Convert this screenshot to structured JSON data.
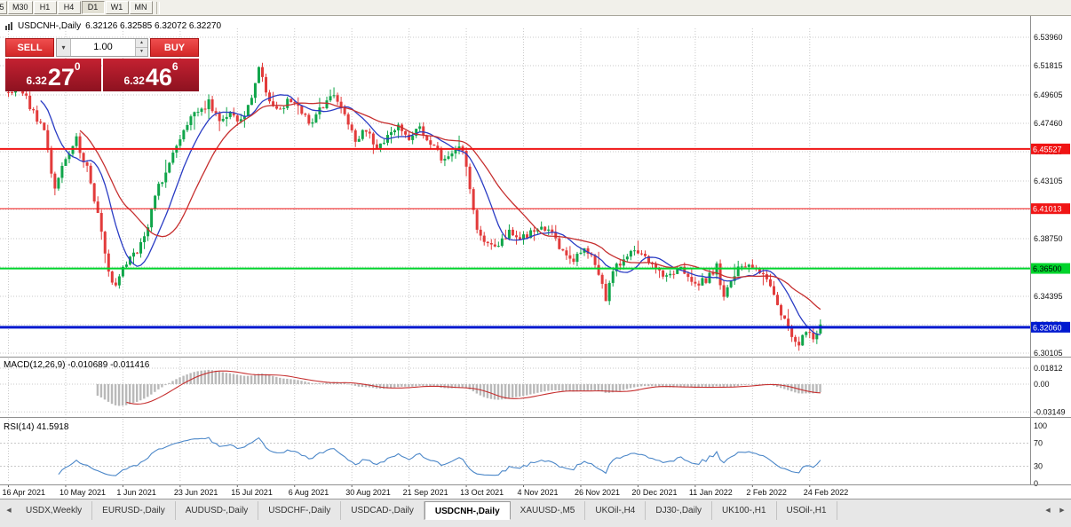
{
  "icons": {
    "scroll_left": "◀",
    "scroll_right": "▶",
    "dropdown": "▾",
    "spin_up": "▲",
    "spin_down": "▼"
  },
  "toolbar": {
    "periods": [
      {
        "label": "5",
        "active": false,
        "partial": true
      },
      {
        "label": "M30",
        "active": false
      },
      {
        "label": "H1",
        "active": false
      },
      {
        "label": "H4",
        "active": false
      },
      {
        "label": "D1",
        "active": true
      },
      {
        "label": "W1",
        "active": false
      },
      {
        "label": "MN",
        "active": false
      }
    ]
  },
  "chart": {
    "symbol_title": "USDCNH-,Daily",
    "ohlc_line": "6.32126 6.32585 6.32072 6.32270",
    "price_scale": [
      "6.53960",
      "6.51815",
      "6.49605",
      "6.47460",
      "6.45315",
      "6.43105",
      "6.40960",
      "6.38750",
      "6.36605",
      "6.34395",
      "6.32250",
      "6.30105"
    ],
    "levels": [
      {
        "label": "6.45527",
        "value": 6.45527,
        "color": "#f01414",
        "text_color": "#ffffff",
        "line_width": 2
      },
      {
        "label": "6.41013",
        "value": 6.41013,
        "color": "#f01414",
        "text_color": "#ffffff",
        "line_width": 1
      },
      {
        "label": "6.36500",
        "value": 6.365,
        "color": "#00d42c",
        "text_color": "#000000",
        "line_width": 2
      },
      {
        "label": "6.32060",
        "value": 6.3206,
        "color": "#0019cf",
        "text_color": "#ffffff",
        "line_width": 3
      }
    ],
    "dates": [
      "16 Apr 2021",
      "10 May 2021",
      "1 Jun 2021",
      "23 Jun 2021",
      "15 Jul 2021",
      "6 Aug 2021",
      "30 Aug 2021",
      "21 Sep 2021",
      "13 Oct 2021",
      "4 Nov 2021",
      "26 Nov 2021",
      "20 Dec 2021",
      "11 Jan 2022",
      "2 Feb 2022",
      "24 Feb 2022"
    ],
    "date_day_indices": [
      0,
      16,
      32,
      48,
      64,
      80,
      96,
      112,
      128,
      144,
      160,
      176,
      192,
      208,
      224
    ],
    "colors": {
      "up": "#10a54a",
      "down": "#e23b3b",
      "ma_fast": "#2a3cc4",
      "ma_slow": "#c62f2f",
      "grid": "#c9c9c9",
      "macd_hist": "#b9b9b9",
      "macd_signal": "#c62f2f",
      "rsi_line": "#4a86c8",
      "axis_text": "#111111",
      "separator": "#8f8f8f"
    }
  },
  "quote_panel": {
    "sell_label": "SELL",
    "buy_label": "BUY",
    "volume": "1.00",
    "sell_price": {
      "prefix": "6.32",
      "big": "27",
      "sup": "0"
    },
    "buy_price": {
      "prefix": "6.32",
      "big": "46",
      "sup": "6"
    }
  },
  "macd": {
    "label": "MACD(12,26,9) -0.010689 -0.011416",
    "scale_labels": [
      "0.01812",
      "0.00",
      "-0.03149"
    ],
    "fast": 12,
    "slow": 26,
    "signal": 9
  },
  "rsi": {
    "label": "RSI(14) 41.5918",
    "scale_labels": [
      "100",
      "70",
      "30",
      "0"
    ],
    "period": 14,
    "levels": [
      70,
      30
    ]
  },
  "tabs": {
    "items": [
      {
        "label": "USDX,Weekly",
        "active": false
      },
      {
        "label": "EURUSD-,Daily",
        "active": false
      },
      {
        "label": "AUDUSD-,Daily",
        "active": false
      },
      {
        "label": "USDCHF-,Daily",
        "active": false
      },
      {
        "label": "USDCAD-,Daily",
        "active": false
      },
      {
        "label": "USDCNH-,Daily",
        "active": true
      },
      {
        "label": "XAUUSD-,M5",
        "active": false
      },
      {
        "label": "UKOil-,H4",
        "active": false
      },
      {
        "label": "DJ30-,Daily",
        "active": false
      },
      {
        "label": "UK100-,H1",
        "active": false
      },
      {
        "label": "USOil-,H1",
        "active": false
      }
    ]
  },
  "chart_data": {
    "type": "candlestick",
    "symbol": "USDCNH",
    "timeframe": "Daily",
    "current_ohlc": {
      "open": 6.32126,
      "high": 6.32585,
      "low": 6.32072,
      "close": 6.3227
    },
    "bid": 6.3227,
    "ask": 6.32466,
    "ylim": [
      6.30105,
      6.5396
    ],
    "bars_total": 228,
    "seed": 11,
    "last_close": 6.3227,
    "x_labels": [
      "16 Apr 2021",
      "10 May 2021",
      "1 Jun 2021",
      "23 Jun 2021",
      "15 Jul 2021",
      "6 Aug 2021",
      "30 Aug 2021",
      "21 Sep 2021",
      "13 Oct 2021",
      "4 Nov 2021",
      "26 Nov 2021",
      "20 Dec 2021",
      "11 Jan 2022",
      "2 Feb 2022",
      "24 Feb 2022"
    ],
    "horizontal_lines": [
      6.45527,
      6.41013,
      6.365,
      6.3206
    ],
    "approx_close_waypoints": [
      [
        0,
        6.498
      ],
      [
        3,
        6.505
      ],
      [
        6,
        6.488
      ],
      [
        10,
        6.468
      ],
      [
        13,
        6.425
      ],
      [
        16,
        6.448
      ],
      [
        19,
        6.462
      ],
      [
        22,
        6.44
      ],
      [
        25,
        6.405
      ],
      [
        28,
        6.362
      ],
      [
        30,
        6.352
      ],
      [
        33,
        6.369
      ],
      [
        36,
        6.378
      ],
      [
        38,
        6.39
      ],
      [
        42,
        6.426
      ],
      [
        46,
        6.452
      ],
      [
        49,
        6.468
      ],
      [
        52,
        6.482
      ],
      [
        56,
        6.49
      ],
      [
        59,
        6.476
      ],
      [
        62,
        6.483
      ],
      [
        65,
        6.477
      ],
      [
        68,
        6.492
      ],
      [
        70,
        6.518
      ],
      [
        71,
        6.508
      ],
      [
        73,
        6.49
      ],
      [
        76,
        6.486
      ],
      [
        79,
        6.493
      ],
      [
        82,
        6.483
      ],
      [
        85,
        6.474
      ],
      [
        88,
        6.489
      ],
      [
        91,
        6.494
      ],
      [
        94,
        6.483
      ],
      [
        97,
        6.463
      ],
      [
        100,
        6.471
      ],
      [
        103,
        6.456
      ],
      [
        106,
        6.463
      ],
      [
        109,
        6.473
      ],
      [
        112,
        6.462
      ],
      [
        115,
        6.473
      ],
      [
        118,
        6.459
      ],
      [
        121,
        6.449
      ],
      [
        124,
        6.453
      ],
      [
        127,
        6.456
      ],
      [
        129,
        6.427
      ],
      [
        131,
        6.392
      ],
      [
        134,
        6.386
      ],
      [
        137,
        6.381
      ],
      [
        140,
        6.392
      ],
      [
        143,
        6.386
      ],
      [
        146,
        6.393
      ],
      [
        149,
        6.399
      ],
      [
        152,
        6.389
      ],
      [
        155,
        6.379
      ],
      [
        158,
        6.373
      ],
      [
        161,
        6.379
      ],
      [
        164,
        6.369
      ],
      [
        166,
        6.352
      ],
      [
        167,
        6.34
      ],
      [
        169,
        6.364
      ],
      [
        172,
        6.372
      ],
      [
        175,
        6.379
      ],
      [
        178,
        6.372
      ],
      [
        181,
        6.366
      ],
      [
        184,
        6.359
      ],
      [
        187,
        6.366
      ],
      [
        190,
        6.359
      ],
      [
        193,
        6.353
      ],
      [
        196,
        6.359
      ],
      [
        198,
        6.366
      ],
      [
        200,
        6.342
      ],
      [
        202,
        6.356
      ],
      [
        205,
        6.369
      ],
      [
        208,
        6.366
      ],
      [
        211,
        6.361
      ],
      [
        213,
        6.353
      ],
      [
        215,
        6.338
      ],
      [
        217,
        6.326
      ],
      [
        219,
        6.313
      ],
      [
        221,
        6.306
      ],
      [
        223,
        6.319
      ],
      [
        225,
        6.313
      ],
      [
        227,
        6.3227
      ]
    ],
    "indicators": {
      "moving_averages": [
        {
          "type": "sma",
          "period": 10,
          "color": "blue"
        },
        {
          "type": "sma",
          "period": 21,
          "color": "red"
        }
      ],
      "macd": {
        "fast": 12,
        "slow": 26,
        "signal": 9,
        "current_main": -0.010689,
        "current_signal": -0.011416
      },
      "rsi": {
        "period": 14,
        "current": 41.5918
      }
    }
  }
}
